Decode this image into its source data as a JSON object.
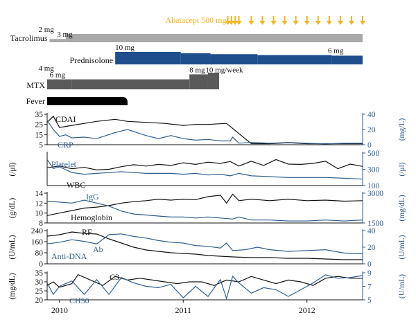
{
  "colors": {
    "black": "#111111",
    "blue": "#2f5d8e",
    "gold": "#f3b51b",
    "tacrolimus": "#a9a9a9",
    "prednisolone": "#1f4e8c",
    "mtx": "#5a5a5a",
    "fever": "#000000"
  },
  "timeline": {
    "x_ticks": [
      {
        "label": "2010",
        "t": 2010.0
      },
      {
        "label": "2011",
        "t": 2011.0
      },
      {
        "label": "2012",
        "t": 2012.0
      }
    ],
    "treatments": [
      {
        "name": "Abatacept",
        "label": "Abatacept 500 mg",
        "color_key": "gold",
        "kind": "arrows",
        "dose_times": [
          2011.36,
          2011.39,
          2011.42,
          2011.45,
          2011.55,
          2011.64,
          2011.73,
          2011.82,
          2011.91,
          2012.0,
          2012.09,
          2012.18,
          2012.27,
          2012.36,
          2012.45
        ]
      },
      {
        "name": "Tacrolimus",
        "label": "Tacrolimus",
        "color_key": "tacrolimus",
        "kind": "bar",
        "segments": [
          {
            "t0": 2009.92,
            "t1": 2010.05,
            "level": 0.4
          },
          {
            "t0": 2010.05,
            "t1": 2012.45,
            "level": 1.0
          }
        ],
        "dose_labels": [
          {
            "text": "2 mg",
            "t": 2009.83
          },
          {
            "text": "3 mg",
            "t": 2009.98
          }
        ]
      },
      {
        "name": "Prednisolone",
        "label": "Prednisolone",
        "color_key": "prednisolone",
        "kind": "bar",
        "segments": [
          {
            "t0": 2010.45,
            "t1": 2010.98,
            "level": 1.0
          },
          {
            "t0": 2010.98,
            "t1": 2011.22,
            "level": 0.9
          },
          {
            "t0": 2011.22,
            "t1": 2011.6,
            "level": 0.82
          },
          {
            "t0": 2011.6,
            "t1": 2012.2,
            "level": 0.75
          },
          {
            "t0": 2012.2,
            "t1": 2012.45,
            "level": 0.7
          }
        ],
        "dose_labels": [
          {
            "text": "10 mg",
            "t": 2010.45
          },
          {
            "text": "6 mg",
            "t": 2012.17
          }
        ]
      },
      {
        "name": "MTX",
        "label": "MTX",
        "color_key": "mtx",
        "kind": "bar",
        "segments": [
          {
            "t0": 2009.9,
            "t1": 2010.1,
            "level": 0.6
          },
          {
            "t0": 2010.1,
            "t1": 2011.05,
            "level": 0.6
          },
          {
            "t0": 2011.05,
            "t1": 2011.2,
            "level": 0.9
          },
          {
            "t0": 2011.2,
            "t1": 2011.29,
            "level": 1.0
          }
        ],
        "dose_labels": [
          {
            "text": "4 mg",
            "t": 2009.83
          },
          {
            "text": "6 mg",
            "t": 2009.92
          },
          {
            "text": "8 mg",
            "t": 2011.05
          },
          {
            "text": "10 mg/week",
            "t": 2011.18
          }
        ]
      },
      {
        "name": "Fever",
        "label": "Fever",
        "color_key": "fever",
        "kind": "fever",
        "segments": [
          {
            "t0": 2009.9,
            "t1": 2010.55,
            "level": 1.0
          }
        ]
      }
    ]
  },
  "chart_data": [
    {
      "type": "line",
      "panel": "activity",
      "left_axis": {
        "label": "",
        "ticks": [
          5,
          15,
          25,
          35
        ],
        "range": [
          5,
          35
        ]
      },
      "right_axis": {
        "label": "(mg/L)",
        "ticks": [
          0,
          20,
          40
        ],
        "range": [
          0,
          40
        ]
      },
      "series": [
        {
          "name": "CDAI",
          "axis": "left",
          "color_key": "black",
          "x": [
            2009.9,
            2009.95,
            2010.0,
            2010.1,
            2010.2,
            2010.3,
            2010.45,
            2010.55,
            2010.7,
            2010.85,
            2011.0,
            2011.1,
            2011.2,
            2011.35,
            2011.55,
            2011.7,
            2011.85,
            2012.0,
            2012.15,
            2012.3,
            2012.45
          ],
          "y": [
            27,
            33,
            22,
            24,
            26,
            28,
            30,
            28,
            27,
            26,
            24,
            25,
            25,
            26,
            6,
            6,
            7,
            6,
            6,
            6,
            6
          ]
        },
        {
          "name": "CRP",
          "axis": "right",
          "color_key": "blue",
          "x": [
            2009.9,
            2009.95,
            2010.0,
            2010.05,
            2010.1,
            2010.2,
            2010.3,
            2010.45,
            2010.55,
            2010.7,
            2010.8,
            2010.9,
            2011.0,
            2011.1,
            2011.2,
            2011.3,
            2011.38,
            2011.4,
            2011.45,
            2011.55,
            2011.7,
            2011.85,
            2012.0,
            2012.15,
            2012.3,
            2012.45
          ],
          "y": [
            32,
            20,
            11,
            13,
            9,
            10,
            8,
            16,
            20,
            12,
            8,
            12,
            8,
            6,
            7,
            5,
            5,
            10,
            2,
            3,
            2,
            3,
            2,
            1,
            2,
            2
          ]
        }
      ],
      "labels": [
        {
          "text": "CDAI",
          "series": "CDAI"
        },
        {
          "text": "CRP",
          "series": "CRP"
        }
      ]
    },
    {
      "type": "line",
      "panel": "blood_counts",
      "left_axis": {
        "label": "(/μl)",
        "ticks": [],
        "range": [
          0,
          10
        ]
      },
      "right_axis": {
        "label": "(/μl)",
        "ticks": [
          100,
          300,
          500
        ],
        "range": [
          100,
          500
        ]
      },
      "series": [
        {
          "name": "WBC",
          "axis": "left",
          "color_key": "black",
          "x": [
            2009.9,
            2010.0,
            2010.1,
            2010.2,
            2010.3,
            2010.4,
            2010.5,
            2010.6,
            2010.7,
            2010.8,
            2010.9,
            2011.0,
            2011.1,
            2011.2,
            2011.3,
            2011.38,
            2011.45,
            2011.55,
            2011.65,
            2011.75,
            2011.85,
            2011.95,
            2012.05,
            2012.15,
            2012.25,
            2012.35,
            2012.45
          ],
          "y": [
            5.5,
            6.0,
            5.2,
            5.6,
            4.8,
            5.0,
            5.8,
            6.4,
            6.0,
            6.5,
            6.2,
            7.0,
            6.5,
            7.2,
            6.8,
            7.4,
            6.0,
            7.5,
            6.2,
            8.0,
            6.6,
            6.5,
            6.8,
            7.5,
            5.2,
            6.6,
            5.9
          ]
        },
        {
          "name": "Platelet",
          "axis": "right",
          "color_key": "blue",
          "x": [
            2009.9,
            2009.95,
            2010.0,
            2010.1,
            2010.2,
            2010.3,
            2010.4,
            2010.5,
            2010.6,
            2010.7,
            2010.8,
            2010.9,
            2011.0,
            2011.1,
            2011.2,
            2011.3,
            2011.38,
            2011.45,
            2011.55,
            2011.7,
            2011.85,
            2012.0,
            2012.15,
            2012.3,
            2012.45
          ],
          "y": [
            420,
            310,
            330,
            260,
            240,
            250,
            260,
            270,
            260,
            250,
            250,
            250,
            240,
            250,
            230,
            240,
            220,
            250,
            220,
            210,
            200,
            200,
            200,
            190,
            180
          ]
        }
      ],
      "labels": [
        {
          "text": "WBC",
          "series": "WBC"
        },
        {
          "text": "Platelet",
          "series": "Platelet"
        }
      ]
    },
    {
      "type": "line",
      "panel": "proteins",
      "left_axis": {
        "label": "(g/dL)",
        "ticks": [
          8,
          10,
          12,
          14
        ],
        "range": [
          8,
          14
        ]
      },
      "right_axis": {
        "label": "(mg/dL)",
        "ticks": [
          1500,
          3000
        ],
        "range": [
          1500,
          3000
        ]
      },
      "series": [
        {
          "name": "Hemoglobin",
          "axis": "left",
          "color_key": "black",
          "x": [
            2009.9,
            2010.0,
            2010.1,
            2010.2,
            2010.3,
            2010.4,
            2010.5,
            2010.6,
            2010.7,
            2010.8,
            2010.9,
            2011.0,
            2011.1,
            2011.2,
            2011.3,
            2011.35,
            2011.4,
            2011.45,
            2011.55,
            2011.7,
            2011.85,
            2012.0,
            2012.15,
            2012.3,
            2012.45
          ],
          "y": [
            9.5,
            10.0,
            10.5,
            11.0,
            11.2,
            11.5,
            12.0,
            12.3,
            12.5,
            12.8,
            12.6,
            12.8,
            12.7,
            13.3,
            13.6,
            12.0,
            13.8,
            12.5,
            12.8,
            12.5,
            12.8,
            12.5,
            12.6,
            12.4,
            12.5
          ]
        },
        {
          "name": "IgG",
          "axis": "right",
          "color_key": "blue",
          "x": [
            2009.9,
            2010.0,
            2010.1,
            2010.2,
            2010.3,
            2010.4,
            2010.5,
            2010.6,
            2010.7,
            2010.8,
            2010.9,
            2011.0,
            2011.1,
            2011.2,
            2011.3,
            2011.4,
            2011.45,
            2011.55,
            2011.7,
            2011.85,
            2012.0,
            2012.15,
            2012.3,
            2012.45
          ],
          "y": [
            2600,
            2550,
            2500,
            2650,
            2500,
            2350,
            2100,
            1950,
            1900,
            1850,
            1800,
            1800,
            1750,
            1800,
            1750,
            1700,
            1800,
            1650,
            1650,
            1600,
            1600,
            1650,
            1600,
            1650
          ]
        }
      ],
      "labels": [
        {
          "text": "Hemoglobin",
          "series": "Hemoglobin"
        },
        {
          "text": "IgG",
          "series": "IgG"
        }
      ]
    },
    {
      "type": "line",
      "panel": "autoantibodies",
      "left_axis": {
        "label": "(U/mL)",
        "ticks": [
          0,
          80,
          160,
          240
        ],
        "range": [
          0,
          240
        ]
      },
      "right_axis": {
        "label": "(U/mL)",
        "ticks": [
          0,
          20,
          40
        ],
        "range": [
          0,
          40
        ]
      },
      "series": [
        {
          "name": "RF",
          "axis": "left",
          "color_key": "black",
          "x": [
            2009.9,
            2010.0,
            2010.1,
            2010.2,
            2010.3,
            2010.4,
            2010.5,
            2010.6,
            2010.7,
            2010.8,
            2010.9,
            2011.0,
            2011.1,
            2011.2,
            2011.3,
            2011.4,
            2011.55,
            2011.7,
            2011.85,
            2012.0,
            2012.15,
            2012.3,
            2012.45
          ],
          "y": [
            200,
            210,
            230,
            220,
            215,
            180,
            150,
            120,
            100,
            90,
            80,
            75,
            70,
            60,
            55,
            50,
            45,
            45,
            40,
            40,
            35,
            30,
            30
          ]
        },
        {
          "name": "Anti-DNA Ab",
          "axis": "right",
          "color_key": "blue",
          "x": [
            2009.9,
            2010.0,
            2010.1,
            2010.2,
            2010.3,
            2010.4,
            2010.5,
            2010.6,
            2010.7,
            2010.8,
            2010.9,
            2011.0,
            2011.1,
            2011.2,
            2011.3,
            2011.35,
            2011.4,
            2011.5,
            2011.6,
            2011.7,
            2011.85,
            2012.0,
            2012.15,
            2012.3,
            2012.45
          ],
          "y": [
            24,
            26,
            29,
            27,
            24,
            35,
            36,
            33,
            31,
            28,
            26,
            25,
            22,
            21,
            19,
            25,
            16,
            17,
            20,
            17,
            15,
            16,
            17,
            13,
            12
          ]
        }
      ],
      "labels": [
        {
          "text": "RF",
          "series": "RF"
        },
        {
          "text": "Anti-DNA",
          "series": "Anti-DNA Ab"
        },
        {
          "text": "Ab",
          "series": "Anti-DNA Ab"
        }
      ]
    },
    {
      "type": "line",
      "panel": "complement",
      "left_axis": {
        "label": "(mg/dL)",
        "ticks": [
          20,
          25,
          30,
          35
        ],
        "range": [
          20,
          35
        ]
      },
      "right_axis": {
        "label": "(U/mL)",
        "ticks": [
          5,
          7,
          9
        ],
        "range": [
          5,
          9
        ]
      },
      "series": [
        {
          "name": "C3",
          "axis": "left",
          "color_key": "black",
          "x": [
            2009.9,
            2009.95,
            2010.0,
            2010.1,
            2010.15,
            2010.25,
            2010.35,
            2010.45,
            2010.55,
            2010.65,
            2010.75,
            2010.85,
            2010.95,
            2011.05,
            2011.15,
            2011.25,
            2011.35,
            2011.45,
            2011.55,
            2011.65,
            2011.75,
            2011.85,
            2011.95,
            2012.05,
            2012.15,
            2012.25,
            2012.35,
            2012.45
          ],
          "y": [
            28,
            30,
            27,
            29,
            34,
            31,
            28,
            33,
            31,
            32,
            31,
            30,
            29,
            30,
            30,
            28,
            31,
            30,
            33,
            31,
            29,
            31,
            30,
            28,
            32,
            33,
            32,
            32
          ]
        },
        {
          "name": "CH50",
          "axis": "right",
          "color_key": "blue",
          "x": [
            2009.9,
            2009.95,
            2010.0,
            2010.1,
            2010.2,
            2010.3,
            2010.4,
            2010.5,
            2010.6,
            2010.7,
            2010.8,
            2010.9,
            2011.0,
            2011.1,
            2011.2,
            2011.3,
            2011.35,
            2011.4,
            2011.45,
            2011.55,
            2011.65,
            2011.75,
            2011.85,
            2011.95,
            2012.05,
            2012.15,
            2012.25,
            2012.35,
            2012.45
          ],
          "y": [
            7.5,
            5.8,
            7.0,
            7.8,
            5.8,
            8.0,
            5.8,
            8.3,
            7.5,
            7.0,
            6.8,
            7.3,
            5.3,
            7.0,
            5.5,
            8.0,
            5.2,
            8.5,
            7.5,
            6.0,
            6.8,
            6.5,
            5.5,
            6.5,
            7.5,
            8.7,
            8.2,
            8.3,
            8.6
          ]
        }
      ],
      "labels": [
        {
          "text": "C3",
          "series": "C3"
        },
        {
          "text": "CH50",
          "series": "CH50"
        }
      ]
    }
  ]
}
